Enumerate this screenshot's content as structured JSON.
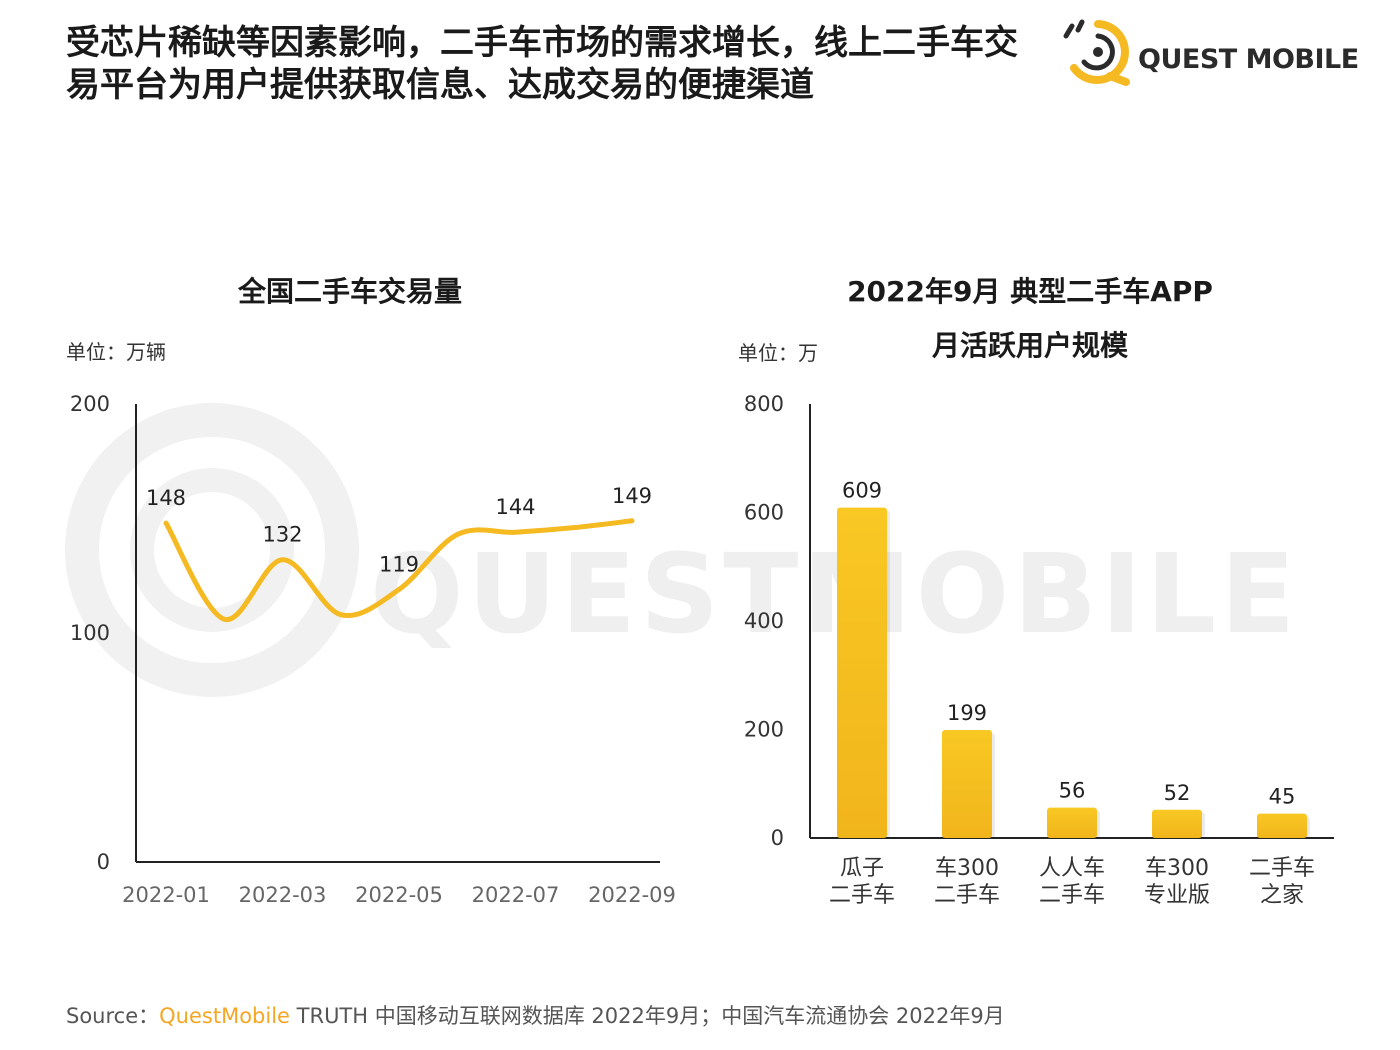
{
  "headline": {
    "line1": "受芯片稀缺等因素影响，二手车市场的需求增长，线上二手车交",
    "line2": "易平台为用户提供获取信息、达成交易的便捷渠道"
  },
  "logo": {
    "text": "QUEST MOBILE"
  },
  "watermark": {
    "text": "QUESTMOBILE"
  },
  "colors": {
    "accent": "#f5b921",
    "bar_top": "#f9c823",
    "bar_bottom": "#f1b51c",
    "axis": "#222222"
  },
  "chart_data": [
    {
      "type": "line",
      "title": "全国二手车交易量",
      "unit_label": "单位：万辆",
      "x": [
        "2022-01",
        "2022-02",
        "2022-03",
        "2022-04",
        "2022-05",
        "2022-06",
        "2022-07",
        "2022-08",
        "2022-09"
      ],
      "x_tick_labels": [
        "2022-01",
        "2022-03",
        "2022-05",
        "2022-07",
        "2022-09"
      ],
      "values": [
        148,
        106,
        132,
        108,
        119,
        143,
        144,
        146,
        149
      ],
      "data_labels": [
        {
          "x": "2022-01",
          "value": 148
        },
        {
          "x": "2022-03",
          "value": 132
        },
        {
          "x": "2022-05",
          "value": 119
        },
        {
          "x": "2022-07",
          "value": 144
        },
        {
          "x": "2022-09",
          "value": 149
        }
      ],
      "y_ticks": [
        0,
        100,
        200
      ],
      "ylim": [
        0,
        200
      ],
      "color": "#f5b921"
    },
    {
      "type": "bar",
      "title_lines": [
        "2022年9月 典型二手车APP",
        "月活跃用户规模"
      ],
      "unit_label": "单位：万",
      "categories": [
        [
          "瓜子",
          "二手车"
        ],
        [
          "车300",
          "二手车"
        ],
        [
          "人人车",
          "二手车"
        ],
        [
          "车300",
          "专业版"
        ],
        [
          "二手车",
          "之家"
        ]
      ],
      "values": [
        609,
        199,
        56,
        52,
        45
      ],
      "y_ticks": [
        0,
        200,
        400,
        600,
        800
      ],
      "ylim": [
        0,
        800
      ]
    }
  ],
  "source": {
    "prefix": "Source：",
    "brand": "QuestMobile",
    "rest": " TRUTH 中国移动互联网数据库 2022年9月；中国汽车流通协会 2022年9月"
  }
}
